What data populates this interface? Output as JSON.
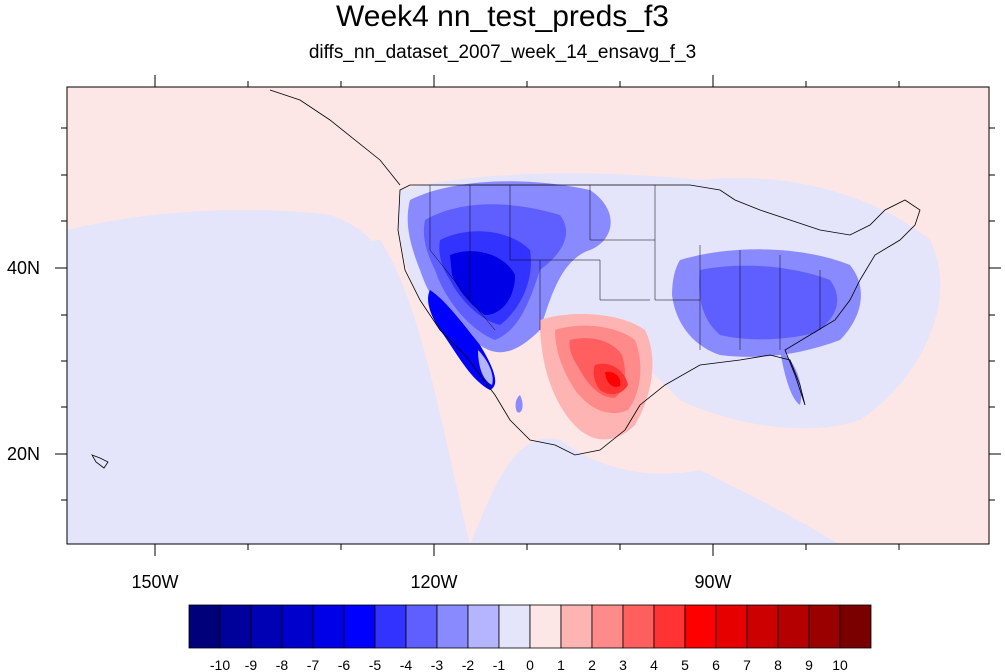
{
  "title": "Week4 nn_test_preds_f3",
  "subtitle": "diffs_nn_dataset_2007_week_14_ensavg_f_3",
  "lon_labels": [
    "150W",
    "120W",
    "90W"
  ],
  "lat_labels": [
    "40N",
    "20N"
  ],
  "colorbar": {
    "labels": [
      "-10",
      "-9",
      "-8",
      "-7",
      "-6",
      "-5",
      "-4",
      "-3",
      "-2",
      "-1",
      "0",
      "1",
      "2",
      "3",
      "4",
      "5",
      "6",
      "7",
      "8",
      "9",
      "10"
    ],
    "colors": [
      "#00007a",
      "#00009a",
      "#0000b4",
      "#0000cc",
      "#0000e6",
      "#0000ff",
      "#3333ff",
      "#5f5fff",
      "#8a8aff",
      "#b4b4ff",
      "#e4e4fb",
      "#fce6e6",
      "#ffb4b4",
      "#ff8a8a",
      "#ff5f5f",
      "#ff3333",
      "#ff0000",
      "#e60000",
      "#cc0000",
      "#b40000",
      "#9a0000",
      "#7a0000"
    ]
  },
  "background_colors": {
    "ocean_low": "#e4e4fb",
    "ocean_high": "#fce6e6"
  }
}
